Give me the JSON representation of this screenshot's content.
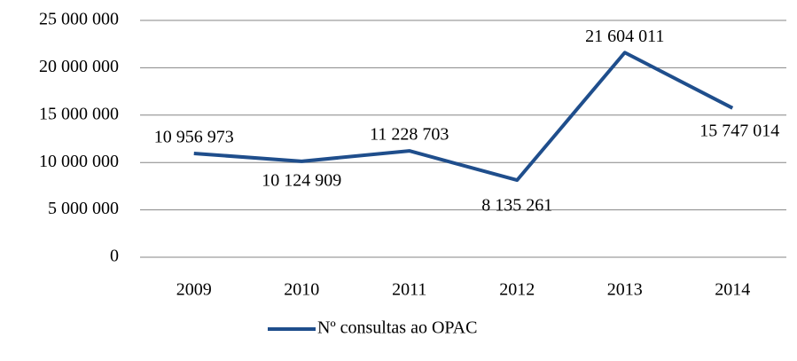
{
  "chart_data": {
    "type": "line",
    "categories": [
      "2009",
      "2010",
      "2011",
      "2012",
      "2013",
      "2014"
    ],
    "series": [
      {
        "name": "Nº consultas ao OPAC",
        "color": "#1f4e8c",
        "values": [
          10956973,
          10124909,
          11228703,
          8135261,
          21604011,
          15747014
        ],
        "value_labels": [
          "10 956 973",
          "10 124 909",
          "11 228 703",
          "8 135 261",
          "21 604 011",
          "15 747 014"
        ]
      }
    ],
    "ylim": [
      0,
      25000000
    ],
    "yticks": [
      {
        "value": 0,
        "label": "0"
      },
      {
        "value": 5000000,
        "label": "5 000 000"
      },
      {
        "value": 10000000,
        "label": "10 000 000"
      },
      {
        "value": 15000000,
        "label": "15 000 000"
      },
      {
        "value": 20000000,
        "label": "20 000 000"
      },
      {
        "value": 25000000,
        "label": "25 000 000"
      }
    ],
    "grid": true,
    "legend": "bottom"
  }
}
